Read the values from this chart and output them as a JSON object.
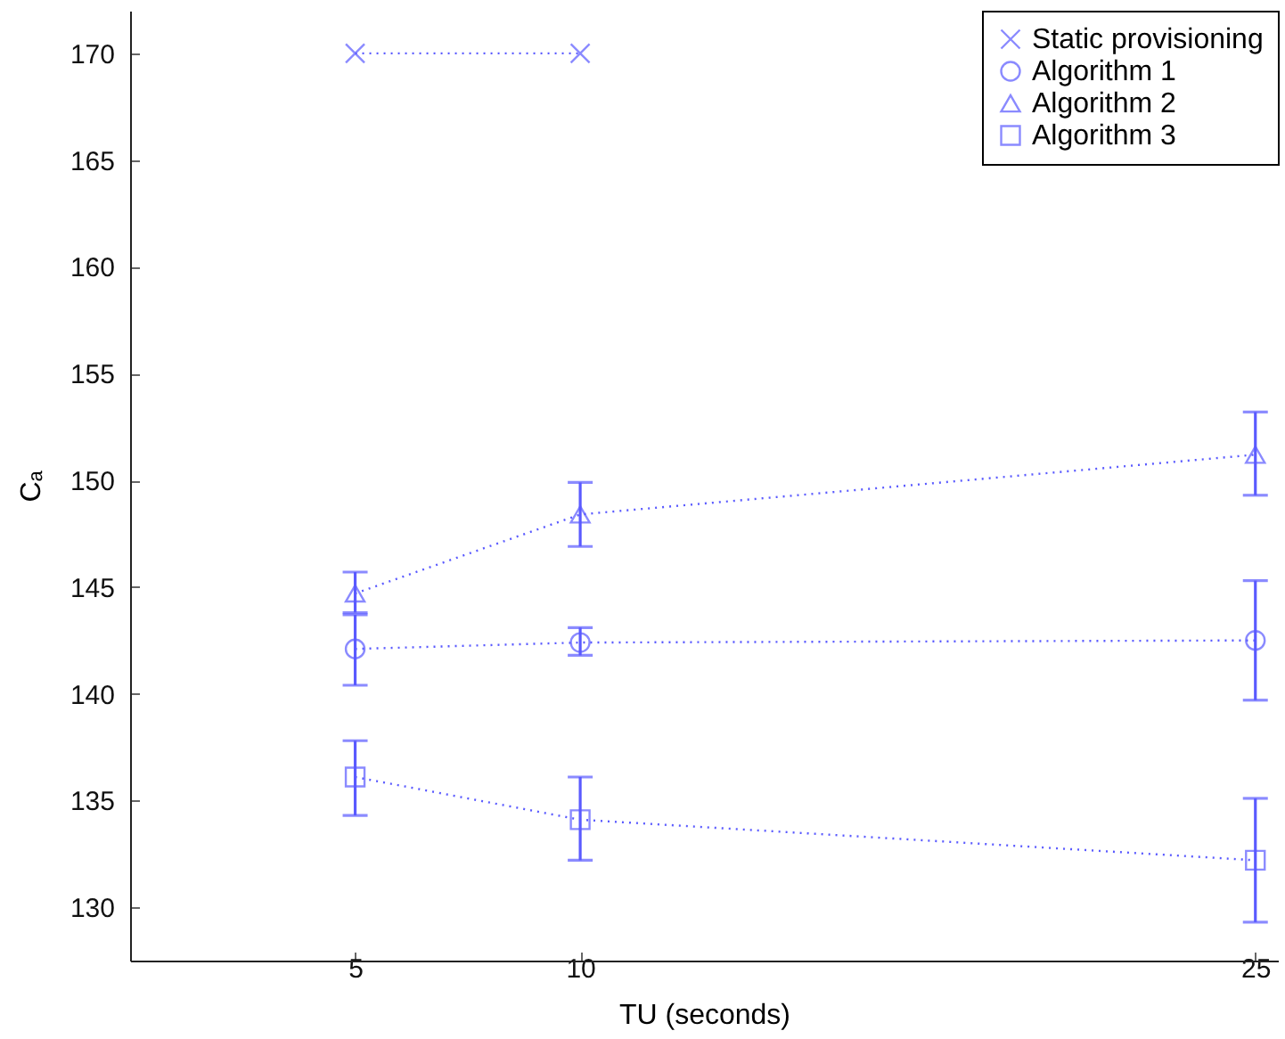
{
  "chart_data": {
    "type": "line",
    "xlabel": "TU (seconds)",
    "ylabel": "Cₐ",
    "x": [
      5,
      10,
      25
    ],
    "xlim": [
      0,
      25.5
    ],
    "xticks": [
      5,
      10,
      25
    ],
    "ylim": [
      127.5,
      172
    ],
    "yticks": [
      130,
      135,
      140,
      145,
      150,
      155,
      160,
      165,
      170
    ],
    "grid": false,
    "legend": "top right",
    "line_style": "dotted",
    "series": [
      {
        "name": "Static provisioning",
        "color": "#5a5aff",
        "marker": "cross",
        "values": [
          170,
          170,
          null
        ]
      },
      {
        "name": "Algorithm 1",
        "color": "#5a5aff",
        "marker": "circle",
        "values": [
          142.1,
          142.4,
          142.5
        ],
        "errors": [
          [
            140.4,
            143.7
          ],
          [
            141.8,
            143.1
          ],
          [
            139.7,
            145.3
          ]
        ]
      },
      {
        "name": "Algorithm 2",
        "color": "#5a5aff",
        "marker": "triangle",
        "values": [
          144.7,
          148.4,
          151.2
        ],
        "errors": [
          [
            143.8,
            145.7
          ],
          [
            146.9,
            149.9
          ],
          [
            149.3,
            153.2
          ]
        ]
      },
      {
        "name": "Algorithm 3",
        "color": "#5a5aff",
        "marker": "square",
        "values": [
          136.1,
          134.1,
          132.2
        ],
        "errors": [
          [
            134.3,
            137.8
          ],
          [
            132.2,
            136.1
          ],
          [
            129.3,
            135.1
          ]
        ]
      }
    ]
  }
}
